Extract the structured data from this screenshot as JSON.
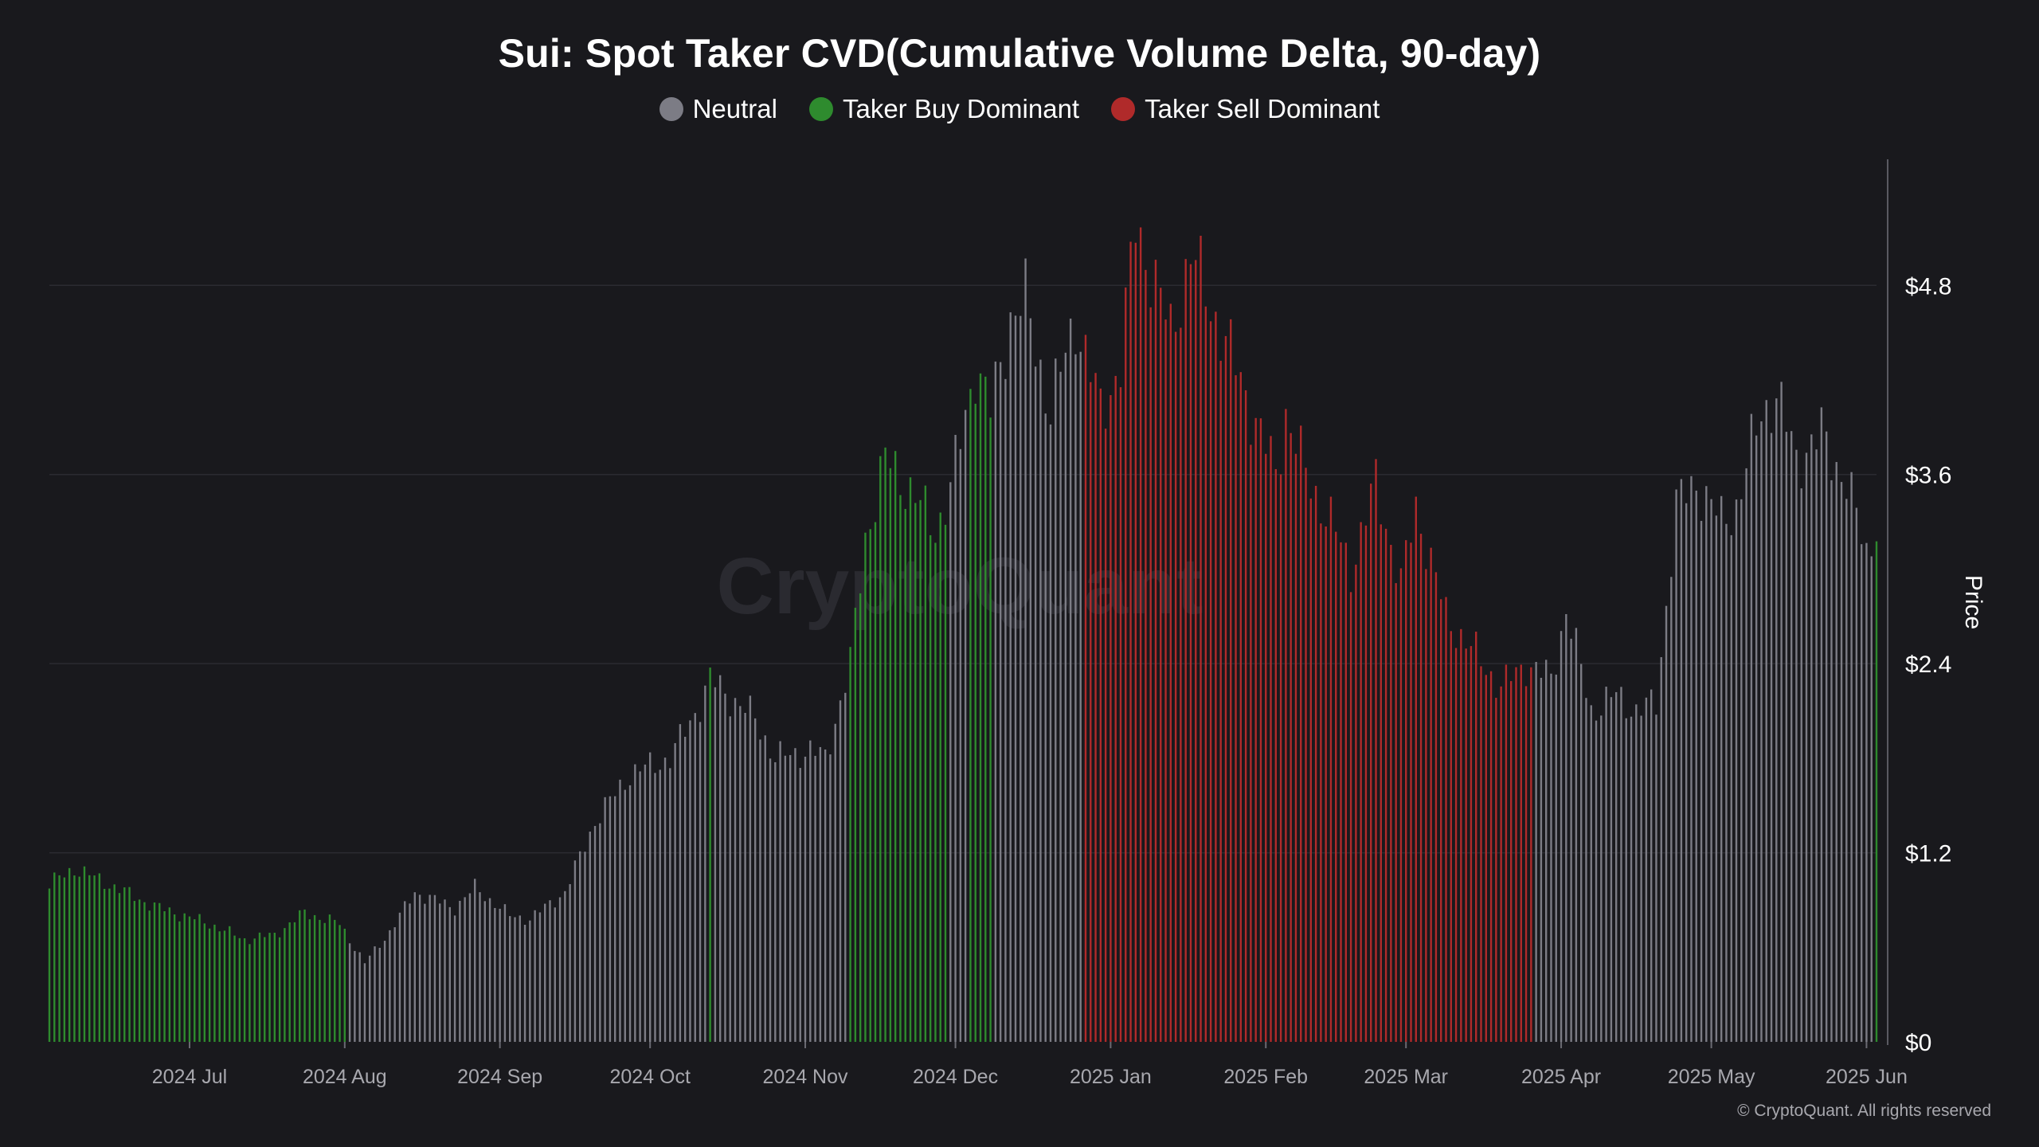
{
  "chart_data": {
    "type": "bar",
    "title": "Sui: Spot Taker CVD(Cumulative Volume Delta, 90-day)",
    "ylabel": "Price",
    "ylim": [
      0,
      5.6
    ],
    "yticks": [
      "$0",
      "$1.2",
      "$2.4",
      "$3.6",
      "$4.8"
    ],
    "ytick_values": [
      0,
      1.2,
      2.4,
      3.6,
      4.8
    ],
    "xticks": [
      "2024 Jul",
      "2024 Aug",
      "2024 Sep",
      "2024 Oct",
      "2024 Nov",
      "2024 Dec",
      "2025 Jan",
      "2025 Feb",
      "2025 Mar",
      "2025 Apr",
      "2025 May",
      "2025 Jun"
    ],
    "xtick_dates": [
      "2024-07-01",
      "2024-08-01",
      "2024-09-01",
      "2024-10-01",
      "2024-11-01",
      "2024-12-01",
      "2025-01-01",
      "2025-02-01",
      "2025-03-01",
      "2025-04-01",
      "2025-05-01",
      "2025-06-01"
    ],
    "x_start": "2024-06-03",
    "x_end": "2025-06-03",
    "grid": true,
    "legend_position": "top-center",
    "watermark": "CryptoQuant",
    "legend": [
      {
        "name": "Neutral",
        "color": "#7c7c85"
      },
      {
        "name": "Taker Buy Dominant",
        "color": "#2e8b2e"
      },
      {
        "name": "Taker Sell Dominant",
        "color": "#b02a2a"
      }
    ],
    "price_anchors": [
      [
        "2024-06-03",
        1.0
      ],
      [
        "2024-06-08",
        1.1
      ],
      [
        "2024-06-15",
        1.0
      ],
      [
        "2024-06-24",
        0.86
      ],
      [
        "2024-07-05",
        0.75
      ],
      [
        "2024-07-12",
        0.65
      ],
      [
        "2024-07-18",
        0.68
      ],
      [
        "2024-07-24",
        0.82
      ],
      [
        "2024-07-31",
        0.75
      ],
      [
        "2024-08-05",
        0.5
      ],
      [
        "2024-08-10",
        0.7
      ],
      [
        "2024-08-15",
        0.95
      ],
      [
        "2024-08-23",
        0.85
      ],
      [
        "2024-08-27",
        0.98
      ],
      [
        "2024-09-03",
        0.8
      ],
      [
        "2024-09-07",
        0.78
      ],
      [
        "2024-09-14",
        0.95
      ],
      [
        "2024-09-20",
        1.4
      ],
      [
        "2024-09-27",
        1.7
      ],
      [
        "2024-10-05",
        1.8
      ],
      [
        "2024-10-11",
        2.15
      ],
      [
        "2024-10-13",
        2.3
      ],
      [
        "2024-10-22",
        2.05
      ],
      [
        "2024-10-26",
        1.8
      ],
      [
        "2024-11-02",
        1.85
      ],
      [
        "2024-11-05",
        1.8
      ],
      [
        "2024-11-10",
        2.4
      ],
      [
        "2024-11-13",
        3.2
      ],
      [
        "2024-11-17",
        3.7
      ],
      [
        "2024-11-22",
        3.5
      ],
      [
        "2024-11-27",
        3.25
      ],
      [
        "2024-11-30",
        3.5
      ],
      [
        "2024-12-05",
        4.3
      ],
      [
        "2024-12-08",
        4.0
      ],
      [
        "2024-12-12",
        4.6
      ],
      [
        "2024-12-15",
        4.7
      ],
      [
        "2024-12-20",
        4.0
      ],
      [
        "2024-12-25",
        4.6
      ],
      [
        "2024-12-30",
        4.0
      ],
      [
        "2025-01-03",
        4.3
      ],
      [
        "2025-01-06",
        5.2
      ],
      [
        "2025-01-10",
        4.8
      ],
      [
        "2025-01-13",
        4.5
      ],
      [
        "2025-01-17",
        5.0
      ],
      [
        "2025-01-22",
        4.6
      ],
      [
        "2025-01-27",
        4.2
      ],
      [
        "2025-02-03",
        3.6
      ],
      [
        "2025-02-05",
        4.0
      ],
      [
        "2025-02-09",
        3.6
      ],
      [
        "2025-02-14",
        3.3
      ],
      [
        "2025-02-18",
        3.0
      ],
      [
        "2025-02-23",
        3.55
      ],
      [
        "2025-02-28",
        2.9
      ],
      [
        "2025-03-03",
        3.4
      ],
      [
        "2025-03-09",
        2.7
      ],
      [
        "2025-03-14",
        2.5
      ],
      [
        "2025-03-20",
        2.25
      ],
      [
        "2025-03-25",
        2.4
      ],
      [
        "2025-03-30",
        2.3
      ],
      [
        "2025-04-02",
        2.75
      ],
      [
        "2025-04-07",
        2.1
      ],
      [
        "2025-04-12",
        2.2
      ],
      [
        "2025-04-16",
        2.1
      ],
      [
        "2025-04-20",
        2.15
      ],
      [
        "2025-04-24",
        3.4
      ],
      [
        "2025-04-28",
        3.55
      ],
      [
        "2025-05-03",
        3.3
      ],
      [
        "2025-05-06",
        3.4
      ],
      [
        "2025-05-11",
        4.0
      ],
      [
        "2025-05-14",
        4.1
      ],
      [
        "2025-05-18",
        3.7
      ],
      [
        "2025-05-23",
        3.85
      ],
      [
        "2025-05-28",
        3.55
      ],
      [
        "2025-06-01",
        3.1
      ],
      [
        "2025-06-03",
        3.3
      ]
    ],
    "dominance_segments": [
      {
        "start": "2024-06-03",
        "end": "2024-08-01",
        "state": "Taker Buy Dominant"
      },
      {
        "start": "2024-08-02",
        "end": "2024-10-12",
        "state": "Neutral"
      },
      {
        "start": "2024-10-13",
        "end": "2024-10-13",
        "state": "Taker Buy Dominant"
      },
      {
        "start": "2024-10-14",
        "end": "2024-11-09",
        "state": "Neutral"
      },
      {
        "start": "2024-11-10",
        "end": "2024-11-29",
        "state": "Taker Buy Dominant"
      },
      {
        "start": "2024-11-30",
        "end": "2024-12-03",
        "state": "Neutral"
      },
      {
        "start": "2024-12-04",
        "end": "2024-12-08",
        "state": "Taker Buy Dominant"
      },
      {
        "start": "2024-12-09",
        "end": "2024-12-26",
        "state": "Neutral"
      },
      {
        "start": "2024-12-27",
        "end": "2025-03-26",
        "state": "Taker Sell Dominant"
      },
      {
        "start": "2025-03-27",
        "end": "2025-06-02",
        "state": "Neutral"
      },
      {
        "start": "2025-06-03",
        "end": "2025-06-03",
        "state": "Taker Buy Dominant"
      }
    ]
  },
  "footer": {
    "copyright": "© CryptoQuant. All rights reserved"
  }
}
